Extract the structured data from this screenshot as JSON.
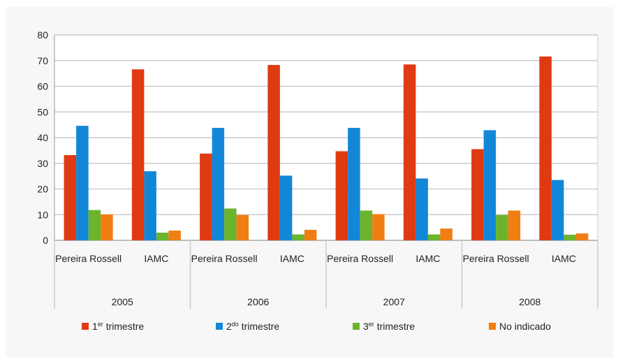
{
  "chart_data": {
    "type": "bar",
    "ylim": [
      0,
      80
    ],
    "yticks": [
      0,
      10,
      20,
      30,
      40,
      50,
      60,
      70,
      80
    ],
    "groups": [
      {
        "year": "2005",
        "categories": [
          "Pereira Rossell",
          "IAMC"
        ]
      },
      {
        "year": "2006",
        "categories": [
          "Pereira Rossell",
          "IAMC"
        ]
      },
      {
        "year": "2007",
        "categories": [
          "Pereira Rossell",
          "IAMC"
        ]
      },
      {
        "year": "2008",
        "categories": [
          "Pereira Rossell",
          "IAMC"
        ]
      }
    ],
    "series": [
      {
        "name": "1er trimestre",
        "name_main": "1",
        "name_sup": "er",
        "name_rest": " trimestre",
        "color": "#e03a12",
        "values": [
          33.2,
          66.6,
          33.8,
          68.3,
          34.7,
          68.5,
          35.5,
          71.6
        ]
      },
      {
        "name": "2do trimestre",
        "name_main": "2",
        "name_sup": "do",
        "name_rest": " trimestre",
        "color": "#1287d8",
        "values": [
          44.6,
          26.9,
          43.8,
          25.2,
          43.8,
          24.1,
          42.9,
          23.5
        ]
      },
      {
        "name": "3er trimestre",
        "name_main": "3",
        "name_sup": "er",
        "name_rest": " trimestre",
        "color": "#6cb42c",
        "values": [
          11.8,
          3.0,
          12.4,
          2.3,
          11.6,
          2.3,
          9.9,
          2.2
        ]
      },
      {
        "name": "No indicado",
        "name_main": "No indicado",
        "name_sup": "",
        "name_rest": "",
        "color": "#f07e12",
        "values": [
          10.1,
          3.8,
          9.9,
          4.1,
          10.2,
          4.6,
          11.6,
          2.7
        ]
      }
    ],
    "grid": true,
    "legend_position": "bottom"
  },
  "colors": {
    "background": "#f7f7f7",
    "grid": "#cccccc",
    "axis": "#999999"
  }
}
